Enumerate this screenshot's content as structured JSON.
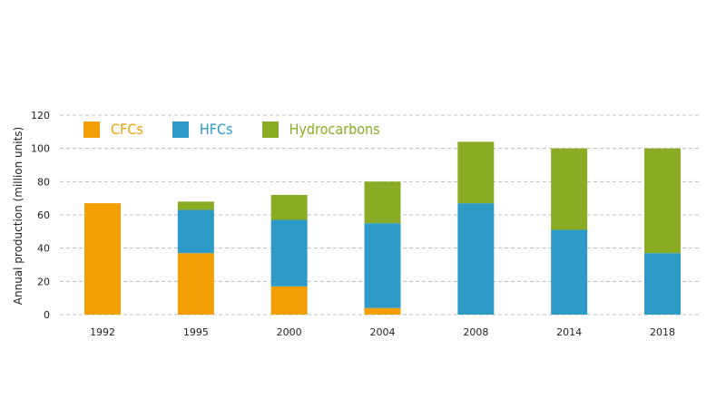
{
  "chart_data": {
    "type": "bar",
    "stacked": true,
    "categories": [
      "1992",
      "1995",
      "2000",
      "2004",
      "2008",
      "2014",
      "2018"
    ],
    "series": [
      {
        "name": "CFCs",
        "color": "#f29f05",
        "values": [
          67,
          37,
          17,
          4,
          0,
          0,
          0
        ]
      },
      {
        "name": "HFCs",
        "color": "#2e9ac8",
        "values": [
          0,
          26,
          40,
          51,
          67,
          51,
          37
        ]
      },
      {
        "name": "Hydrocarbons",
        "color": "#8aac25",
        "values": [
          0,
          5,
          15,
          25,
          37,
          49,
          63
        ]
      }
    ],
    "ylabel": "Annual production (million units)",
    "xlabel": "",
    "ylim": [
      0,
      120
    ],
    "yticks": [
      0,
      20,
      40,
      60,
      80,
      100,
      120
    ],
    "grid": true,
    "legend_position": "top-left"
  }
}
